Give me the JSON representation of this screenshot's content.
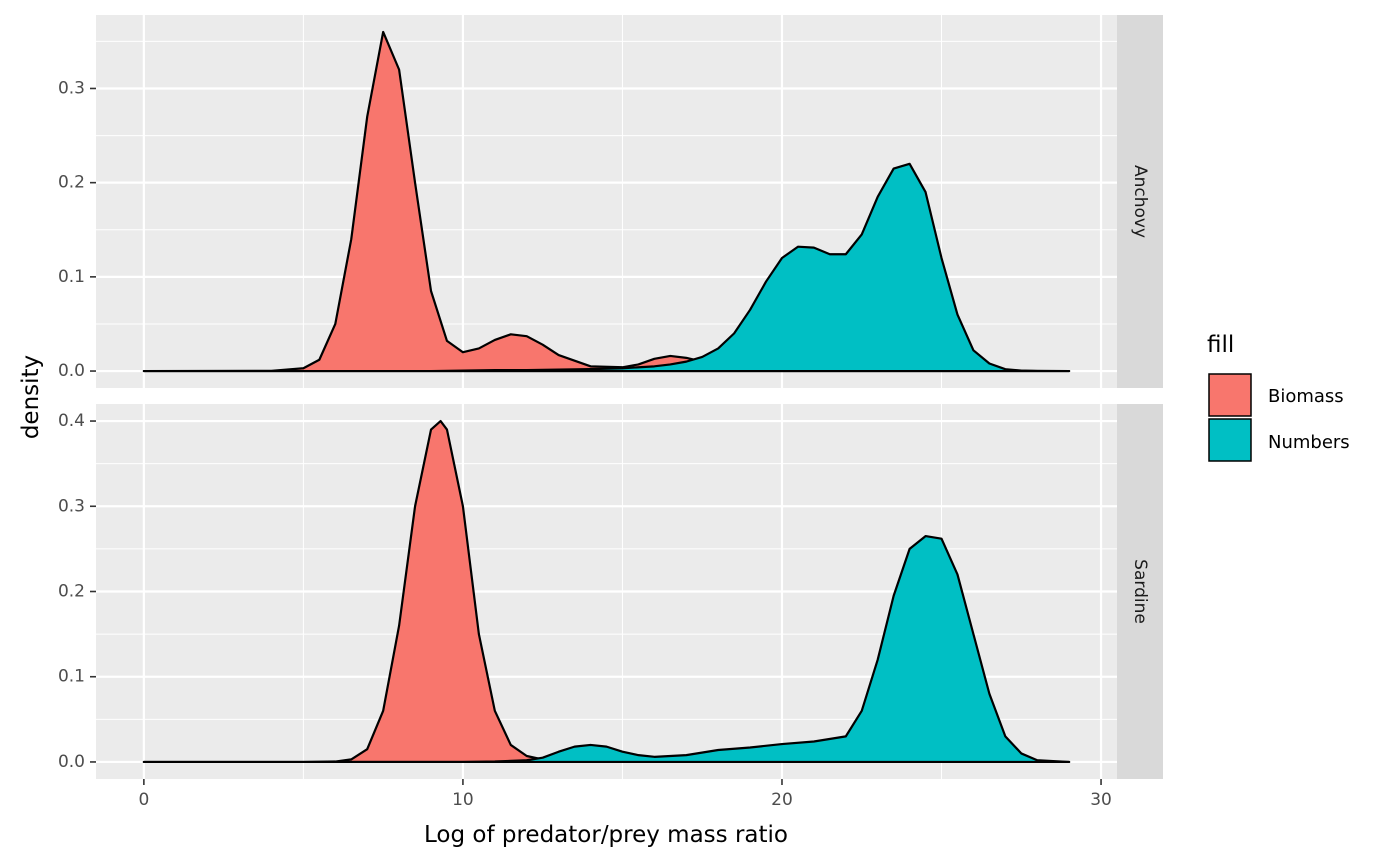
{
  "chart_data": {
    "type": "area",
    "subtype": "density",
    "xlabel": "Log of predator/prey mass ratio",
    "ylabel": "density",
    "xlim": [
      -1.5,
      30.5
    ],
    "x_ticks": [
      0,
      10,
      20,
      30
    ],
    "x_tick_labels": [
      "0",
      "10",
      "20",
      "30"
    ],
    "legend": {
      "title": "fill",
      "position": "right",
      "entries": [
        {
          "name": "Biomass",
          "color": "#F8766D"
        },
        {
          "name": "Numbers",
          "color": "#00BFC4"
        }
      ]
    },
    "panels": [
      {
        "strip": "Anchovy",
        "ylim": [
          -0.018,
          0.378
        ],
        "y_ticks": [
          0.0,
          0.1,
          0.2,
          0.3
        ],
        "y_tick_labels": [
          "0.0",
          "0.1",
          "0.2",
          "0.3"
        ],
        "series": [
          {
            "name": "Biomass",
            "color": "#F8766D",
            "x": [
              0,
              4,
              5,
              5.5,
              6,
              6.5,
              7,
              7.5,
              8,
              8.5,
              9,
              9.5,
              10,
              10.5,
              11,
              11.5,
              12,
              12.5,
              13,
              14,
              15,
              15.5,
              16,
              16.5,
              17,
              17.5,
              18,
              19,
              20,
              22,
              24,
              26,
              29
            ],
            "y": [
              0,
              0.0002,
              0.003,
              0.012,
              0.05,
              0.14,
              0.27,
              0.36,
              0.32,
              0.2,
              0.085,
              0.032,
              0.02,
              0.024,
              0.033,
              0.039,
              0.037,
              0.028,
              0.017,
              0.005,
              0.004,
              0.007,
              0.013,
              0.016,
              0.014,
              0.01,
              0.007,
              0.004,
              0.004,
              0.002,
              0.001,
              0.0005,
              0
            ]
          },
          {
            "name": "Numbers",
            "color": "#00BFC4",
            "x": [
              0,
              5,
              9,
              10,
              11,
              12,
              13,
              14,
              15,
              16,
              16.5,
              17,
              17.5,
              18,
              18.5,
              19,
              19.5,
              20,
              20.5,
              21,
              21.5,
              22,
              22.5,
              23,
              23.5,
              24,
              24.5,
              25,
              25.5,
              26,
              26.5,
              27,
              27.5,
              28,
              29
            ],
            "y": [
              0,
              0,
              0,
              0.0005,
              0.001,
              0.001,
              0.0015,
              0.002,
              0.003,
              0.005,
              0.007,
              0.01,
              0.015,
              0.024,
              0.04,
              0.065,
              0.095,
              0.12,
              0.132,
              0.131,
              0.124,
              0.124,
              0.145,
              0.185,
              0.215,
              0.22,
              0.19,
              0.12,
              0.06,
              0.022,
              0.008,
              0.002,
              0.0005,
              0,
              0
            ]
          }
        ]
      },
      {
        "strip": "Sardine",
        "ylim": [
          -0.02,
          0.42
        ],
        "y_ticks": [
          0.0,
          0.1,
          0.2,
          0.3,
          0.4
        ],
        "y_tick_labels": [
          "0.0",
          "0.1",
          "0.2",
          "0.3",
          "0.4"
        ],
        "series": [
          {
            "name": "Biomass",
            "color": "#F8766D",
            "x": [
              0,
              5,
              6,
              6.5,
              7,
              7.5,
              8,
              8.5,
              9,
              9.3,
              9.5,
              10,
              10.5,
              11,
              11.5,
              12,
              12.5,
              13,
              14,
              15,
              16,
              17,
              18,
              20,
              22,
              24,
              26,
              29
            ],
            "y": [
              0,
              0,
              0.0005,
              0.003,
              0.015,
              0.06,
              0.16,
              0.3,
              0.39,
              0.4,
              0.39,
              0.3,
              0.15,
              0.06,
              0.02,
              0.007,
              0.003,
              0.003,
              0.007,
              0.005,
              0.002,
              0.001,
              0.0005,
              0.0002,
              0.0001,
              0,
              0,
              0
            ]
          },
          {
            "name": "Numbers",
            "color": "#00BFC4",
            "x": [
              0,
              10,
              11,
              12,
              12.5,
              13,
              13.5,
              14,
              14.5,
              15,
              15.5,
              16,
              17,
              18,
              19,
              20,
              21,
              22,
              22.5,
              23,
              23.5,
              24,
              24.5,
              25,
              25.5,
              26,
              26.5,
              27,
              27.5,
              28,
              29
            ],
            "y": [
              0,
              0,
              0.0005,
              0.002,
              0.005,
              0.012,
              0.018,
              0.02,
              0.018,
              0.012,
              0.008,
              0.006,
              0.008,
              0.014,
              0.017,
              0.021,
              0.024,
              0.03,
              0.06,
              0.12,
              0.195,
              0.25,
              0.265,
              0.262,
              0.22,
              0.15,
              0.08,
              0.03,
              0.01,
              0.002,
              0
            ]
          }
        ]
      }
    ]
  }
}
